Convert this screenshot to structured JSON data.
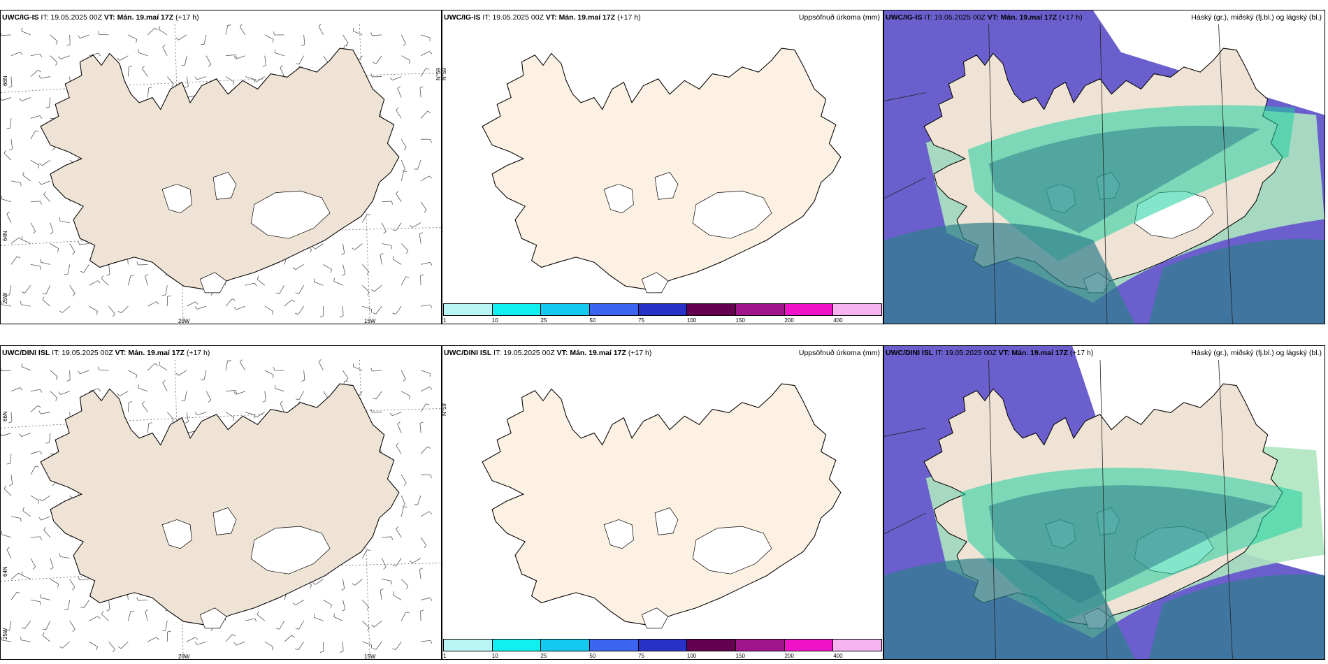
{
  "rows": [
    {
      "model": "UWC/IG-IS",
      "it_label": "IT:",
      "it_value": "19.05.2025 00Z",
      "vt_label": "VT:",
      "vt_value": "Mán. 19.maí 17Z",
      "lead": "(+17 h)"
    },
    {
      "model": "UWC/DINI ISL",
      "it_label": "IT:",
      "it_value": "19.05.2025 00Z",
      "vt_label": "VT:",
      "vt_value": "Mán. 19.maí 17Z",
      "lead": "(+17 h)"
    }
  ],
  "precip_title": "Uppsöfnuð úrkoma (mm)",
  "cloud_title": "Háský (gr.), miðský (fj.bl.) og lágský (bl.)",
  "axis_labels": {
    "lat66": "66N",
    "lat64": "64N",
    "lon25": "25W",
    "lon20": "20W",
    "lon15": "15W",
    "lon65_rot": "N°59"
  },
  "precip_scale": {
    "ticks": [
      "1",
      "10",
      "25",
      "50",
      "75",
      "100",
      "150",
      "200",
      "400"
    ],
    "colors": [
      "#b9f5f5",
      "#10f0f0",
      "#14c8f0",
      "#3c64f0",
      "#2832c8",
      "#640050",
      "#a0148c",
      "#f014c8",
      "#f5b4f0"
    ]
  },
  "colors": {
    "land_wind": "#efe3d5",
    "land_precip": "#fdf1e4",
    "sea_cloud": "#6a5fcc",
    "cloud_low": "#2d7f8c",
    "cloud_mid": "#1ecf9e",
    "cloud_high": "#aee6c0"
  }
}
